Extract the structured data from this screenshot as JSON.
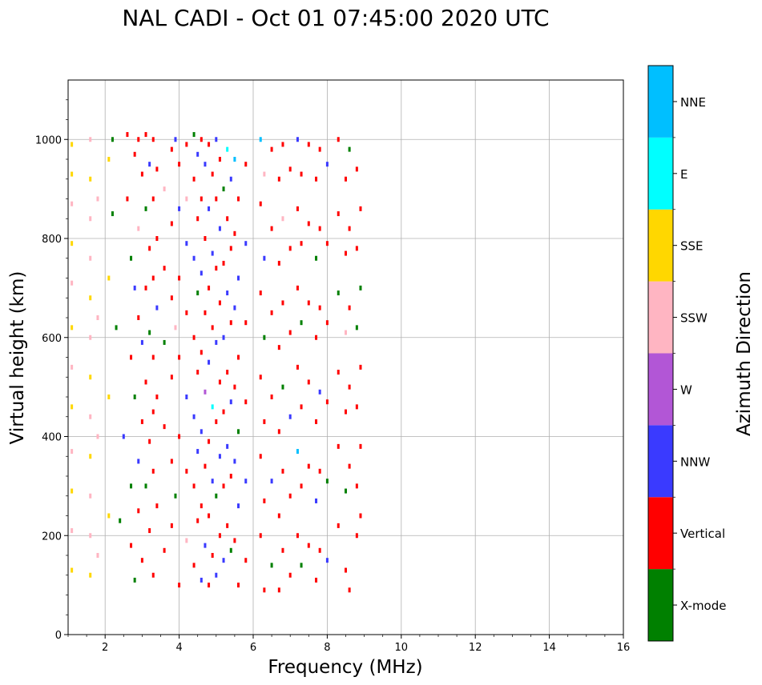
{
  "chart_data": {
    "type": "scatter",
    "title": "NAL CADI - Oct 01 07:45:00 2020 UTC",
    "xlabel": "Frequency (MHz)",
    "ylabel": "Virtual height (km)",
    "xlim": [
      1,
      16
    ],
    "ylim": [
      0,
      1120
    ],
    "xticks": [
      2,
      4,
      6,
      8,
      10,
      12,
      14,
      16
    ],
    "yticks": [
      0,
      200,
      400,
      600,
      800,
      1000
    ],
    "grid": true,
    "colorbar": {
      "label": "Azimuth Direction",
      "categories": [
        {
          "name": "X-mode",
          "color": "#008000"
        },
        {
          "name": "Vertical",
          "color": "#ff0000"
        },
        {
          "name": "NNW",
          "color": "#3a3aff"
        },
        {
          "name": "W",
          "color": "#b256d6"
        },
        {
          "name": "SSW",
          "color": "#ffb5c2"
        },
        {
          "name": "SSE",
          "color": "#ffd700"
        },
        {
          "name": "E",
          "color": "#00ffff"
        },
        {
          "name": "NNE",
          "color": "#00bfff"
        }
      ]
    },
    "points": [
      [
        2.2,
        1000,
        0
      ],
      [
        2.2,
        850,
        0
      ],
      [
        2.3,
        620,
        0
      ],
      [
        2.4,
        230,
        0
      ],
      [
        2.5,
        400,
        2
      ],
      [
        2.6,
        1010,
        1
      ],
      [
        2.6,
        880,
        1
      ],
      [
        2.7,
        760,
        0
      ],
      [
        2.7,
        560,
        1
      ],
      [
        2.7,
        300,
        0
      ],
      [
        2.7,
        180,
        1
      ],
      [
        2.8,
        970,
        1
      ],
      [
        2.8,
        700,
        2
      ],
      [
        2.8,
        480,
        0
      ],
      [
        2.8,
        110,
        0
      ],
      [
        2.9,
        1000,
        1
      ],
      [
        2.9,
        820,
        4
      ],
      [
        2.9,
        640,
        1
      ],
      [
        2.9,
        350,
        2
      ],
      [
        2.9,
        250,
        1
      ],
      [
        3.0,
        930,
        1
      ],
      [
        3.0,
        590,
        2
      ],
      [
        3.0,
        430,
        1
      ],
      [
        3.0,
        150,
        1
      ],
      [
        3.1,
        1010,
        1
      ],
      [
        3.1,
        860,
        0
      ],
      [
        3.1,
        700,
        1
      ],
      [
        3.1,
        510,
        1
      ],
      [
        3.1,
        300,
        0
      ],
      [
        3.2,
        950,
        2
      ],
      [
        3.2,
        780,
        1
      ],
      [
        3.2,
        610,
        0
      ],
      [
        3.2,
        390,
        1
      ],
      [
        3.2,
        210,
        1
      ],
      [
        3.3,
        1000,
        1
      ],
      [
        3.3,
        880,
        1
      ],
      [
        3.3,
        720,
        1
      ],
      [
        3.3,
        560,
        1
      ],
      [
        3.3,
        450,
        1
      ],
      [
        3.3,
        330,
        1
      ],
      [
        3.3,
        120,
        1
      ],
      [
        3.4,
        940,
        1
      ],
      [
        3.4,
        800,
        1
      ],
      [
        3.4,
        660,
        2
      ],
      [
        3.4,
        480,
        1
      ],
      [
        3.4,
        260,
        1
      ],
      [
        3.6,
        900,
        4
      ],
      [
        3.6,
        740,
        1
      ],
      [
        3.6,
        590,
        0
      ],
      [
        3.6,
        420,
        1
      ],
      [
        3.6,
        170,
        1
      ],
      [
        3.8,
        980,
        1
      ],
      [
        3.8,
        830,
        1
      ],
      [
        3.8,
        680,
        1
      ],
      [
        3.8,
        520,
        1
      ],
      [
        3.8,
        350,
        1
      ],
      [
        3.8,
        220,
        1
      ],
      [
        3.9,
        1000,
        2
      ],
      [
        3.9,
        620,
        4
      ],
      [
        3.9,
        280,
        0
      ],
      [
        4.0,
        950,
        1
      ],
      [
        4.0,
        860,
        2
      ],
      [
        4.0,
        720,
        1
      ],
      [
        4.0,
        560,
        1
      ],
      [
        4.0,
        400,
        1
      ],
      [
        4.0,
        100,
        1
      ],
      [
        4.2,
        990,
        1
      ],
      [
        4.2,
        880,
        4
      ],
      [
        4.2,
        790,
        2
      ],
      [
        4.2,
        650,
        1
      ],
      [
        4.2,
        480,
        2
      ],
      [
        4.2,
        330,
        1
      ],
      [
        4.2,
        190,
        4
      ],
      [
        4.4,
        1010,
        0
      ],
      [
        4.4,
        920,
        1
      ],
      [
        4.4,
        760,
        2
      ],
      [
        4.4,
        600,
        1
      ],
      [
        4.4,
        440,
        2
      ],
      [
        4.4,
        300,
        1
      ],
      [
        4.4,
        140,
        1
      ],
      [
        4.5,
        970,
        2
      ],
      [
        4.5,
        840,
        1
      ],
      [
        4.5,
        690,
        0
      ],
      [
        4.5,
        530,
        1
      ],
      [
        4.5,
        370,
        2
      ],
      [
        4.5,
        230,
        1
      ],
      [
        4.6,
        1000,
        1
      ],
      [
        4.6,
        880,
        1
      ],
      [
        4.6,
        730,
        2
      ],
      [
        4.6,
        570,
        1
      ],
      [
        4.6,
        410,
        2
      ],
      [
        4.6,
        260,
        1
      ],
      [
        4.6,
        110,
        2
      ],
      [
        4.7,
        950,
        2
      ],
      [
        4.7,
        800,
        1
      ],
      [
        4.7,
        650,
        1
      ],
      [
        4.7,
        490,
        3
      ],
      [
        4.7,
        340,
        1
      ],
      [
        4.7,
        180,
        2
      ],
      [
        4.8,
        990,
        1
      ],
      [
        4.8,
        860,
        2
      ],
      [
        4.8,
        700,
        1
      ],
      [
        4.8,
        550,
        2
      ],
      [
        4.8,
        390,
        1
      ],
      [
        4.8,
        240,
        1
      ],
      [
        4.8,
        100,
        1
      ],
      [
        4.9,
        930,
        1
      ],
      [
        4.9,
        770,
        2
      ],
      [
        4.9,
        620,
        1
      ],
      [
        4.9,
        460,
        6
      ],
      [
        4.9,
        310,
        2
      ],
      [
        4.9,
        160,
        1
      ],
      [
        5.0,
        1000,
        2
      ],
      [
        5.0,
        880,
        1
      ],
      [
        5.0,
        740,
        1
      ],
      [
        5.0,
        590,
        2
      ],
      [
        5.0,
        430,
        1
      ],
      [
        5.0,
        280,
        0
      ],
      [
        5.0,
        120,
        2
      ],
      [
        5.1,
        960,
        1
      ],
      [
        5.1,
        820,
        2
      ],
      [
        5.1,
        670,
        1
      ],
      [
        5.1,
        510,
        1
      ],
      [
        5.1,
        360,
        2
      ],
      [
        5.1,
        200,
        1
      ],
      [
        5.2,
        900,
        0
      ],
      [
        5.2,
        750,
        1
      ],
      [
        5.2,
        600,
        2
      ],
      [
        5.2,
        450,
        1
      ],
      [
        5.2,
        300,
        1
      ],
      [
        5.2,
        150,
        2
      ],
      [
        5.3,
        980,
        6
      ],
      [
        5.3,
        840,
        1
      ],
      [
        5.3,
        690,
        2
      ],
      [
        5.3,
        530,
        1
      ],
      [
        5.3,
        380,
        2
      ],
      [
        5.3,
        220,
        1
      ],
      [
        5.4,
        920,
        2
      ],
      [
        5.4,
        780,
        1
      ],
      [
        5.4,
        630,
        1
      ],
      [
        5.4,
        470,
        2
      ],
      [
        5.4,
        320,
        1
      ],
      [
        5.4,
        170,
        0
      ],
      [
        5.5,
        960,
        7
      ],
      [
        5.5,
        810,
        1
      ],
      [
        5.5,
        660,
        2
      ],
      [
        5.5,
        500,
        1
      ],
      [
        5.5,
        350,
        2
      ],
      [
        5.5,
        190,
        1
      ],
      [
        5.6,
        880,
        1
      ],
      [
        5.6,
        720,
        2
      ],
      [
        5.6,
        560,
        1
      ],
      [
        5.6,
        410,
        0
      ],
      [
        5.6,
        260,
        2
      ],
      [
        5.6,
        100,
        1
      ],
      [
        5.8,
        950,
        1
      ],
      [
        5.8,
        790,
        2
      ],
      [
        5.8,
        630,
        1
      ],
      [
        5.8,
        470,
        1
      ],
      [
        5.8,
        310,
        2
      ],
      [
        5.8,
        150,
        1
      ],
      [
        6.2,
        1000,
        7
      ],
      [
        6.2,
        870,
        1
      ],
      [
        6.2,
        690,
        1
      ],
      [
        6.2,
        520,
        1
      ],
      [
        6.2,
        360,
        1
      ],
      [
        6.2,
        200,
        1
      ],
      [
        6.3,
        930,
        4
      ],
      [
        6.3,
        760,
        2
      ],
      [
        6.3,
        600,
        0
      ],
      [
        6.3,
        430,
        1
      ],
      [
        6.3,
        270,
        1
      ],
      [
        6.3,
        90,
        1
      ],
      [
        6.5,
        980,
        1
      ],
      [
        6.5,
        820,
        1
      ],
      [
        6.5,
        650,
        1
      ],
      [
        6.5,
        480,
        1
      ],
      [
        6.5,
        310,
        2
      ],
      [
        6.5,
        140,
        0
      ],
      [
        6.7,
        920,
        1
      ],
      [
        6.7,
        750,
        1
      ],
      [
        6.7,
        580,
        1
      ],
      [
        6.7,
        410,
        1
      ],
      [
        6.7,
        240,
        1
      ],
      [
        6.7,
        90,
        1
      ],
      [
        6.8,
        990,
        1
      ],
      [
        6.8,
        840,
        4
      ],
      [
        6.8,
        670,
        1
      ],
      [
        6.8,
        500,
        0
      ],
      [
        6.8,
        330,
        1
      ],
      [
        6.8,
        170,
        1
      ],
      [
        7.0,
        940,
        1
      ],
      [
        7.0,
        780,
        1
      ],
      [
        7.0,
        610,
        1
      ],
      [
        7.0,
        440,
        2
      ],
      [
        7.0,
        280,
        1
      ],
      [
        7.0,
        120,
        1
      ],
      [
        7.2,
        1000,
        2
      ],
      [
        7.2,
        860,
        1
      ],
      [
        7.2,
        700,
        1
      ],
      [
        7.2,
        540,
        1
      ],
      [
        7.2,
        370,
        7
      ],
      [
        7.2,
        200,
        1
      ],
      [
        7.3,
        930,
        1
      ],
      [
        7.3,
        790,
        1
      ],
      [
        7.3,
        630,
        0
      ],
      [
        7.3,
        460,
        1
      ],
      [
        7.3,
        300,
        1
      ],
      [
        7.3,
        140,
        0
      ],
      [
        7.5,
        990,
        1
      ],
      [
        7.5,
        830,
        1
      ],
      [
        7.5,
        670,
        1
      ],
      [
        7.5,
        510,
        1
      ],
      [
        7.5,
        340,
        1
      ],
      [
        7.5,
        180,
        1
      ],
      [
        7.7,
        920,
        1
      ],
      [
        7.7,
        760,
        0
      ],
      [
        7.7,
        600,
        1
      ],
      [
        7.7,
        430,
        1
      ],
      [
        7.7,
        270,
        2
      ],
      [
        7.7,
        110,
        1
      ],
      [
        7.8,
        980,
        1
      ],
      [
        7.8,
        820,
        1
      ],
      [
        7.8,
        660,
        1
      ],
      [
        7.8,
        490,
        2
      ],
      [
        7.8,
        330,
        1
      ],
      [
        7.8,
        170,
        1
      ],
      [
        8.0,
        950,
        2
      ],
      [
        8.0,
        790,
        1
      ],
      [
        8.0,
        630,
        1
      ],
      [
        8.0,
        470,
        1
      ],
      [
        8.0,
        310,
        0
      ],
      [
        8.0,
        150,
        2
      ],
      [
        8.3,
        1000,
        1
      ],
      [
        8.3,
        850,
        1
      ],
      [
        8.3,
        690,
        0
      ],
      [
        8.3,
        530,
        1
      ],
      [
        8.3,
        380,
        1
      ],
      [
        8.3,
        220,
        1
      ],
      [
        8.5,
        920,
        1
      ],
      [
        8.5,
        770,
        1
      ],
      [
        8.5,
        610,
        4
      ],
      [
        8.5,
        450,
        1
      ],
      [
        8.5,
        290,
        0
      ],
      [
        8.5,
        130,
        1
      ],
      [
        8.6,
        980,
        0
      ],
      [
        8.6,
        820,
        1
      ],
      [
        8.6,
        660,
        1
      ],
      [
        8.6,
        500,
        1
      ],
      [
        8.6,
        340,
        1
      ],
      [
        8.6,
        90,
        1
      ],
      [
        8.8,
        940,
        1
      ],
      [
        8.8,
        780,
        1
      ],
      [
        8.8,
        620,
        0
      ],
      [
        8.8,
        460,
        1
      ],
      [
        8.8,
        300,
        1
      ],
      [
        8.8,
        200,
        1
      ],
      [
        8.9,
        860,
        1
      ],
      [
        8.9,
        700,
        0
      ],
      [
        8.9,
        540,
        1
      ],
      [
        8.9,
        380,
        1
      ],
      [
        8.9,
        240,
        1
      ],
      [
        1.1,
        990,
        5
      ],
      [
        1.1,
        930,
        5
      ],
      [
        1.1,
        870,
        4
      ],
      [
        1.1,
        790,
        5
      ],
      [
        1.1,
        710,
        4
      ],
      [
        1.1,
        620,
        5
      ],
      [
        1.1,
        540,
        4
      ],
      [
        1.1,
        460,
        5
      ],
      [
        1.1,
        370,
        4
      ],
      [
        1.1,
        290,
        5
      ],
      [
        1.1,
        210,
        4
      ],
      [
        1.1,
        130,
        5
      ],
      [
        1.6,
        1000,
        4
      ],
      [
        1.6,
        920,
        5
      ],
      [
        1.6,
        840,
        4
      ],
      [
        1.6,
        760,
        4
      ],
      [
        1.6,
        680,
        5
      ],
      [
        1.6,
        600,
        4
      ],
      [
        1.6,
        520,
        5
      ],
      [
        1.6,
        440,
        4
      ],
      [
        1.6,
        360,
        5
      ],
      [
        1.6,
        280,
        4
      ],
      [
        1.6,
        200,
        4
      ],
      [
        1.6,
        120,
        5
      ],
      [
        1.8,
        880,
        4
      ],
      [
        1.8,
        640,
        4
      ],
      [
        1.8,
        400,
        4
      ],
      [
        1.8,
        160,
        4
      ],
      [
        2.1,
        960,
        5
      ],
      [
        2.1,
        720,
        5
      ],
      [
        2.1,
        480,
        5
      ],
      [
        2.1,
        240,
        5
      ]
    ]
  }
}
